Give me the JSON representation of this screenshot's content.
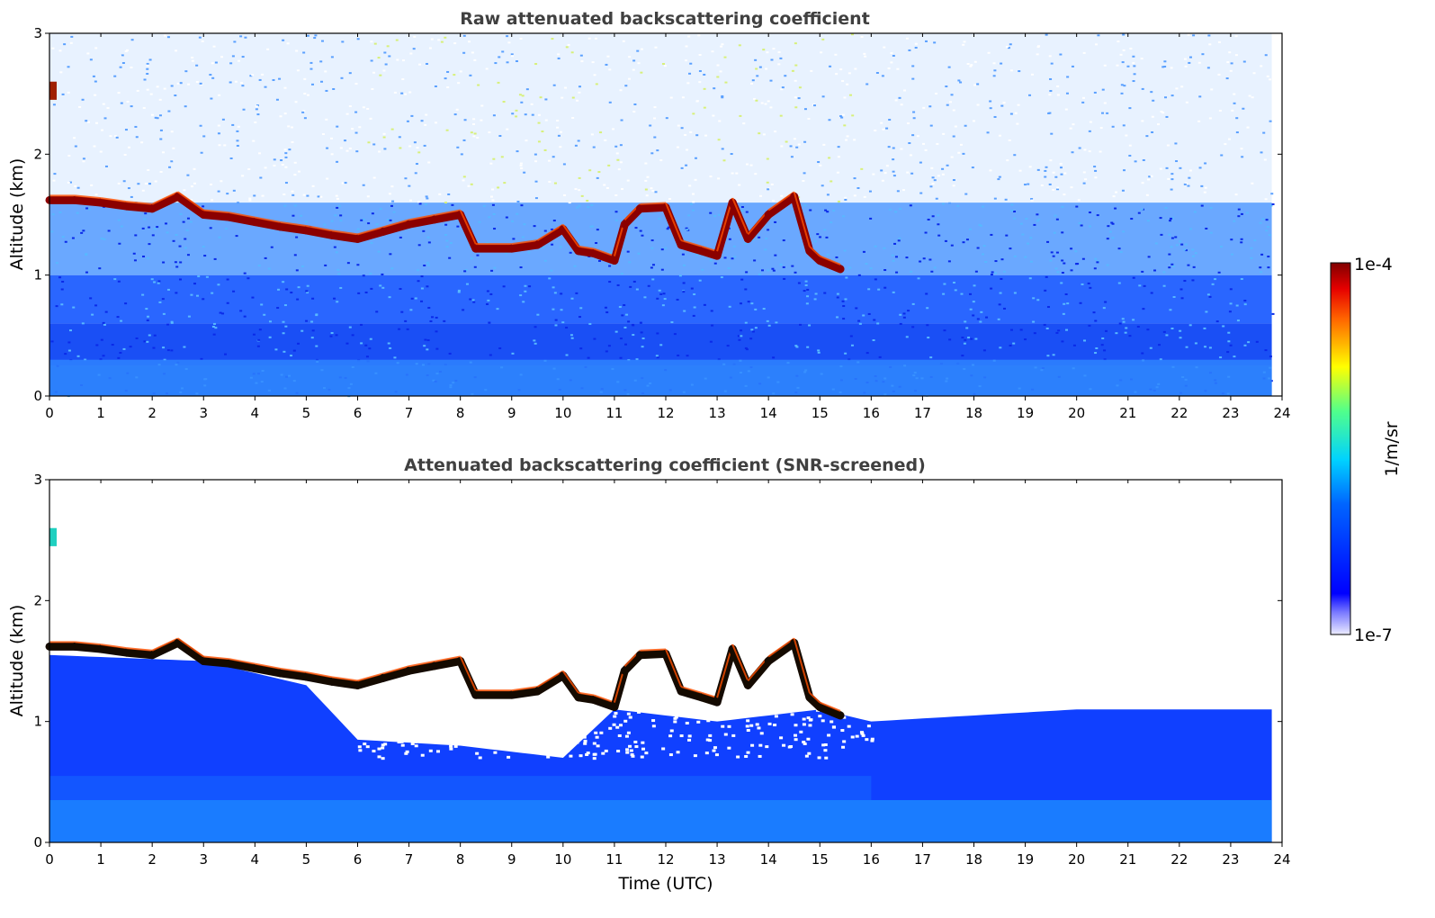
{
  "chart_data": [
    {
      "type": "heatmap",
      "title": "Raw attenuated backscattering coefficient",
      "xlabel": "",
      "ylabel": "Altitude (km)",
      "xlim": [
        0,
        24
      ],
      "ylim": [
        0,
        3
      ],
      "xticks": [
        "0",
        "1",
        "2",
        "3",
        "4",
        "5",
        "6",
        "7",
        "8",
        "9",
        "10",
        "11",
        "12",
        "13",
        "14",
        "15",
        "16",
        "17",
        "18",
        "19",
        "20",
        "21",
        "22",
        "23",
        "24"
      ],
      "yticks": [
        "0",
        "1",
        "2",
        "3"
      ],
      "x_end": 23.8,
      "screened": false,
      "cloud_base_km": [
        [
          0.0,
          1.62
        ],
        [
          0.5,
          1.62
        ],
        [
          1.0,
          1.6
        ],
        [
          1.5,
          1.57
        ],
        [
          2.0,
          1.55
        ],
        [
          2.5,
          1.65
        ],
        [
          3.0,
          1.5
        ],
        [
          3.5,
          1.48
        ],
        [
          4.0,
          1.44
        ],
        [
          4.5,
          1.4
        ],
        [
          5.0,
          1.37
        ],
        [
          5.5,
          1.33
        ],
        [
          6.0,
          1.3
        ],
        [
          6.5,
          1.36
        ],
        [
          7.0,
          1.42
        ],
        [
          7.5,
          1.46
        ],
        [
          8.0,
          1.5
        ],
        [
          8.3,
          1.22
        ],
        [
          9.0,
          1.22
        ],
        [
          9.5,
          1.25
        ],
        [
          10.0,
          1.38
        ],
        [
          10.3,
          1.2
        ],
        [
          10.6,
          1.18
        ],
        [
          11.0,
          1.12
        ],
        [
          11.2,
          1.42
        ],
        [
          11.5,
          1.55
        ],
        [
          12.0,
          1.56
        ],
        [
          12.3,
          1.25
        ],
        [
          12.7,
          1.2
        ],
        [
          13.0,
          1.16
        ],
        [
          13.3,
          1.6
        ],
        [
          13.6,
          1.3
        ],
        [
          14.0,
          1.5
        ],
        [
          14.5,
          1.65
        ],
        [
          14.8,
          1.2
        ],
        [
          15.0,
          1.12
        ],
        [
          15.4,
          1.05
        ]
      ]
    },
    {
      "type": "heatmap",
      "title": "Attenuated backscattering coefficient (SNR-screened)",
      "xlabel": "Time (UTC)",
      "ylabel": "Altitude (km)",
      "xlim": [
        0,
        24
      ],
      "ylim": [
        0,
        3
      ],
      "xticks": [
        "0",
        "1",
        "2",
        "3",
        "4",
        "5",
        "6",
        "7",
        "8",
        "9",
        "10",
        "11",
        "12",
        "13",
        "14",
        "15",
        "16",
        "17",
        "18",
        "19",
        "20",
        "21",
        "22",
        "23",
        "24"
      ],
      "yticks": [
        "0",
        "1",
        "2",
        "3"
      ],
      "x_end": 23.8,
      "screened": true,
      "aerosol_top_km": [
        [
          0,
          1.55
        ],
        [
          3,
          1.5
        ],
        [
          5,
          1.3
        ],
        [
          6,
          0.85
        ],
        [
          8,
          0.8
        ],
        [
          10,
          0.7
        ],
        [
          11,
          1.1
        ],
        [
          13,
          1.0
        ],
        [
          15,
          1.1
        ],
        [
          16,
          1.0
        ],
        [
          18,
          1.05
        ],
        [
          20,
          1.1
        ],
        [
          22,
          1.1
        ],
        [
          23.8,
          1.1
        ]
      ]
    }
  ],
  "colorbar": {
    "label": "1/m/sr",
    "max_label": "1e-4",
    "min_label": "1e-7",
    "scale": "log",
    "range": [
      1e-07,
      0.0001
    ],
    "colormap": "jet"
  },
  "colors": {
    "cloud": "#8b0000",
    "title": "#404040",
    "low": "#0000ff",
    "mid": "#00c8ff",
    "high": "#ffff00"
  }
}
